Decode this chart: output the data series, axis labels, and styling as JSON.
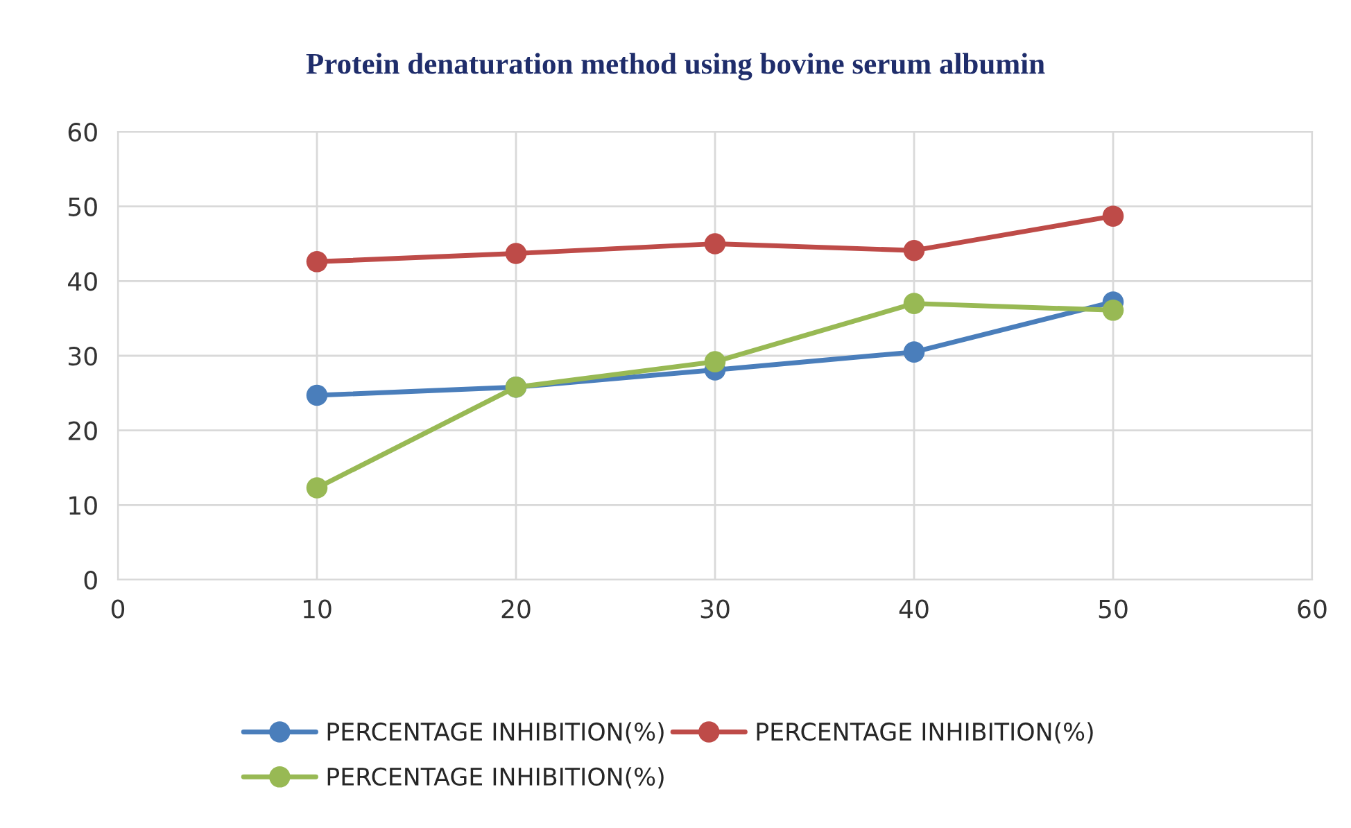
{
  "chart_data": {
    "type": "line",
    "title": "Protein denaturation method using bovine serum albumin",
    "x": [
      10,
      20,
      30,
      40,
      50
    ],
    "series": [
      {
        "name": "PERCENTAGE INHIBITION(%)",
        "color": "#4a7ebb",
        "values": [
          24.7,
          25.8,
          28.1,
          30.5,
          37.2
        ]
      },
      {
        "name": "PERCENTAGE INHIBITION(%)",
        "color": "#be4b48",
        "values": [
          42.6,
          43.7,
          45.0,
          44.1,
          48.7
        ]
      },
      {
        "name": "PERCENTAGE INHIBITION(%)",
        "color": "#98b954",
        "values": [
          12.3,
          25.8,
          29.2,
          37.0,
          36.1
        ]
      }
    ],
    "xlim": [
      0,
      60
    ],
    "xticks": [
      0,
      10,
      20,
      30,
      40,
      50,
      60
    ],
    "ylim": [
      0,
      60
    ],
    "yticks": [
      0,
      10,
      20,
      30,
      40,
      50,
      60
    ],
    "grid": true,
    "legend": "bottom",
    "marker": "circle",
    "line_style": "solid"
  }
}
